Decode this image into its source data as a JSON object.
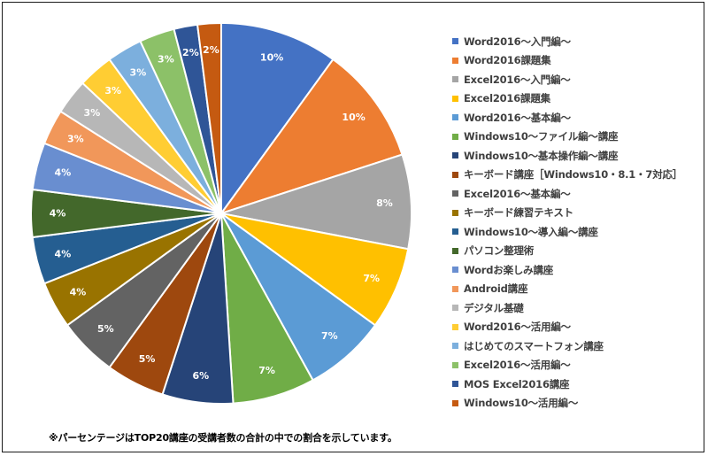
{
  "chart_data": {
    "type": "pie",
    "start_angle_deg": 0,
    "direction": "clockwise",
    "slices": [
      {
        "label": "Word2016～入門編～",
        "value": 10,
        "display": "10%",
        "color": "#4472C4"
      },
      {
        "label": "Word2016課題集",
        "value": 10,
        "display": "10%",
        "color": "#ED7D31"
      },
      {
        "label": "Excel2016～入門編～",
        "value": 8,
        "display": "8%",
        "color": "#A5A5A5"
      },
      {
        "label": "Excel2016課題集",
        "value": 7,
        "display": "7%",
        "color": "#FFC000"
      },
      {
        "label": "Word2016～基本編～",
        "value": 7,
        "display": "7%",
        "color": "#5B9BD5"
      },
      {
        "label": "Windows10～ファイル編～講座",
        "value": 7,
        "display": "7%",
        "color": "#70AD47"
      },
      {
        "label": "Windows10～基本操作編～講座",
        "value": 6,
        "display": "6%",
        "color": "#264478"
      },
      {
        "label": "キーボード講座［Windows10・8.1・7対応］",
        "value": 5,
        "display": "5%",
        "color": "#9E480E"
      },
      {
        "label": "Excel2016～基本編～",
        "value": 5,
        "display": "5%",
        "color": "#636363"
      },
      {
        "label": "キーボード練習テキスト",
        "value": 4,
        "display": "4%",
        "color": "#997300"
      },
      {
        "label": "Windows10～導入編～講座",
        "value": 4,
        "display": "4%",
        "color": "#255E91"
      },
      {
        "label": "パソコン整理術",
        "value": 4,
        "display": "4%",
        "color": "#43682B"
      },
      {
        "label": "Wordお楽しみ講座",
        "value": 4,
        "display": "4%",
        "color": "#698ED0"
      },
      {
        "label": "Android講座",
        "value": 3,
        "display": "3%",
        "color": "#F1975A"
      },
      {
        "label": "デジタル基礎",
        "value": 3,
        "display": "3%",
        "color": "#B7B7B7"
      },
      {
        "label": "Word2016～活用編～",
        "value": 3,
        "display": "3%",
        "color": "#FFCD33"
      },
      {
        "label": "はじめてのスマートフォン講座",
        "value": 3,
        "display": "3%",
        "color": "#7CAFDD"
      },
      {
        "label": "Excel2016～活用編～",
        "value": 3,
        "display": "3%",
        "color": "#8CC168"
      },
      {
        "label": "MOS Excel2016講座",
        "value": 2,
        "display": "2%",
        "color": "#2F5597"
      },
      {
        "label": "Windows10～活用編～",
        "value": 2,
        "display": "2%",
        "color": "#C55A11"
      }
    ],
    "legend_position": "right"
  },
  "footnote": "※パーセンテージはTOP20講座の受講者数の合計の中での割合を示しています。"
}
